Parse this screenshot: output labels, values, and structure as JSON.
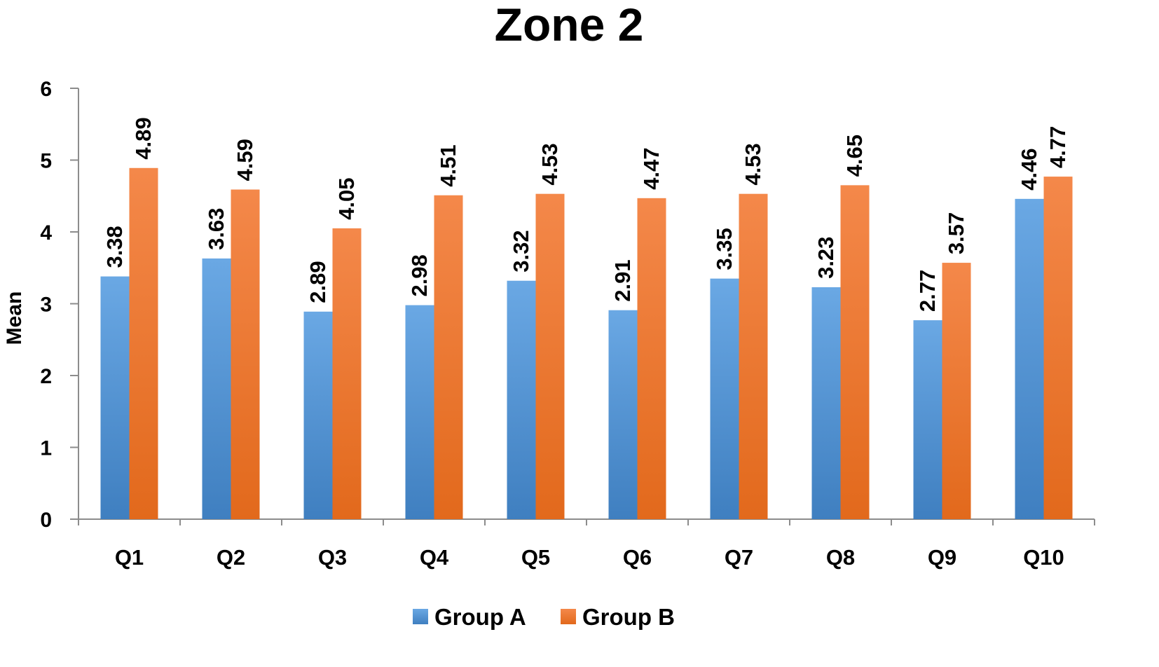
{
  "chart_data": {
    "type": "bar",
    "title": "Zone 2",
    "xlabel": "",
    "ylabel": "Mean",
    "ylim": [
      0,
      6
    ],
    "yticks": [
      0,
      1,
      2,
      3,
      4,
      5,
      6
    ],
    "grid": false,
    "legend_position": "bottom",
    "categories": [
      "Q1",
      "Q2",
      "Q3",
      "Q4",
      "Q5",
      "Q6",
      "Q7",
      "Q8",
      "Q9",
      "Q10"
    ],
    "series": [
      {
        "name": "Group A",
        "color": "#4f8fd1",
        "values": [
          3.38,
          3.63,
          2.89,
          2.98,
          3.32,
          2.91,
          3.35,
          3.23,
          2.77,
          4.46
        ]
      },
      {
        "name": "Group B",
        "color": "#ee7424",
        "values": [
          4.89,
          4.59,
          4.05,
          4.51,
          4.53,
          4.47,
          4.53,
          4.65,
          3.57,
          4.77
        ]
      }
    ]
  }
}
